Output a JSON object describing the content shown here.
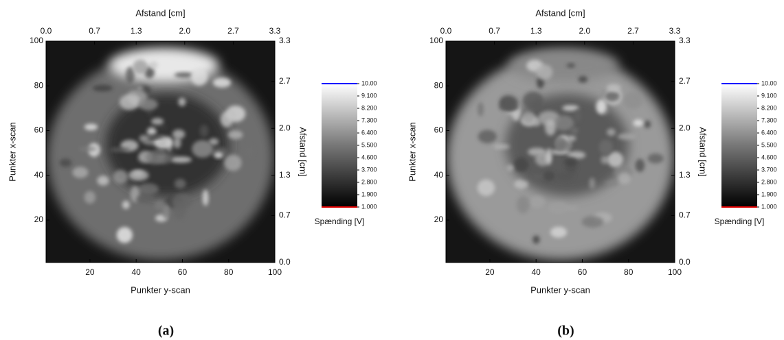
{
  "chart_data": [
    {
      "type": "heatmap",
      "caption": "(a)",
      "xlabel": "Punkter y-scan",
      "ylabel": "Punkter x-scan",
      "x2label": "Afstand [cm]",
      "y2label": "Afstand [cm]",
      "xlim": [
        1,
        100
      ],
      "xticks": [
        20,
        40,
        60,
        80,
        100
      ],
      "ylim": [
        1,
        100
      ],
      "yticks": [
        20,
        40,
        60,
        80,
        100
      ],
      "x2lim": [
        0,
        3.3
      ],
      "x2ticks": [
        {
          "value": 0,
          "label": "0.0"
        },
        0.7,
        1.3,
        {
          "value": 2,
          "label": "2.0"
        },
        2.7,
        3.3
      ],
      "y2lim": [
        0,
        3.3
      ],
      "y2ticks": [
        {
          "value": 0,
          "label": "0.0"
        },
        0.7,
        1.3,
        {
          "value": 2,
          "label": "2.0"
        },
        2.7,
        3.3
      ],
      "colorbar": {
        "label": "Spænding [V]",
        "lim": [
          1,
          10
        ],
        "high_color": "#0000ff",
        "low_color": "#e00000",
        "ticks": [
          {
            "value": 10,
            "label": "10.00"
          },
          {
            "value": 9.1,
            "label": "9.100"
          },
          {
            "value": 8.2,
            "label": "8.200"
          },
          {
            "value": 7.3,
            "label": "7.300"
          },
          {
            "value": 6.4,
            "label": "6.400"
          },
          {
            "value": 5.5,
            "label": "5.500"
          },
          {
            "value": 4.6,
            "label": "4.600"
          },
          {
            "value": 3.7,
            "label": "3.700"
          },
          {
            "value": 2.8,
            "label": "2.800"
          },
          {
            "value": 1.9,
            "label": "1.900"
          },
          {
            "value": 1,
            "label": "1.000"
          }
        ]
      }
    },
    {
      "type": "heatmap",
      "caption": "(b)",
      "xlabel": "Punkter y-scan",
      "ylabel": "Punkter x-scan",
      "x2label": "Afstand [cm]",
      "y2label": "Afstand [cm]",
      "xlim": [
        1,
        100
      ],
      "xticks": [
        20,
        40,
        60,
        80,
        100
      ],
      "ylim": [
        1,
        100
      ],
      "yticks": [
        20,
        40,
        60,
        80,
        100
      ],
      "x2lim": [
        0,
        3.3
      ],
      "x2ticks": [
        {
          "value": 0,
          "label": "0.0"
        },
        0.7,
        1.3,
        {
          "value": 2,
          "label": "2.0"
        },
        2.7,
        3.3
      ],
      "y2lim": [
        0,
        3.3
      ],
      "y2ticks": [
        {
          "value": 0,
          "label": "0.0"
        },
        0.7,
        1.3,
        {
          "value": 2,
          "label": "2.0"
        },
        2.7,
        3.3
      ],
      "colorbar": {
        "label": "Spænding [V]",
        "lim": [
          1,
          10
        ],
        "high_color": "#0000ff",
        "low_color": "#e00000",
        "ticks": [
          {
            "value": 10,
            "label": "10.00"
          },
          {
            "value": 9.1,
            "label": "9.100"
          },
          {
            "value": 8.2,
            "label": "8.200"
          },
          {
            "value": 7.3,
            "label": "7.300"
          },
          {
            "value": 6.4,
            "label": "6.400"
          },
          {
            "value": 5.5,
            "label": "5.500"
          },
          {
            "value": 4.6,
            "label": "4.600"
          },
          {
            "value": 3.7,
            "label": "3.700"
          },
          {
            "value": 2.8,
            "label": "2.800"
          },
          {
            "value": 1.9,
            "label": "1.900"
          },
          {
            "value": 1,
            "label": "1.000"
          }
        ]
      }
    }
  ]
}
